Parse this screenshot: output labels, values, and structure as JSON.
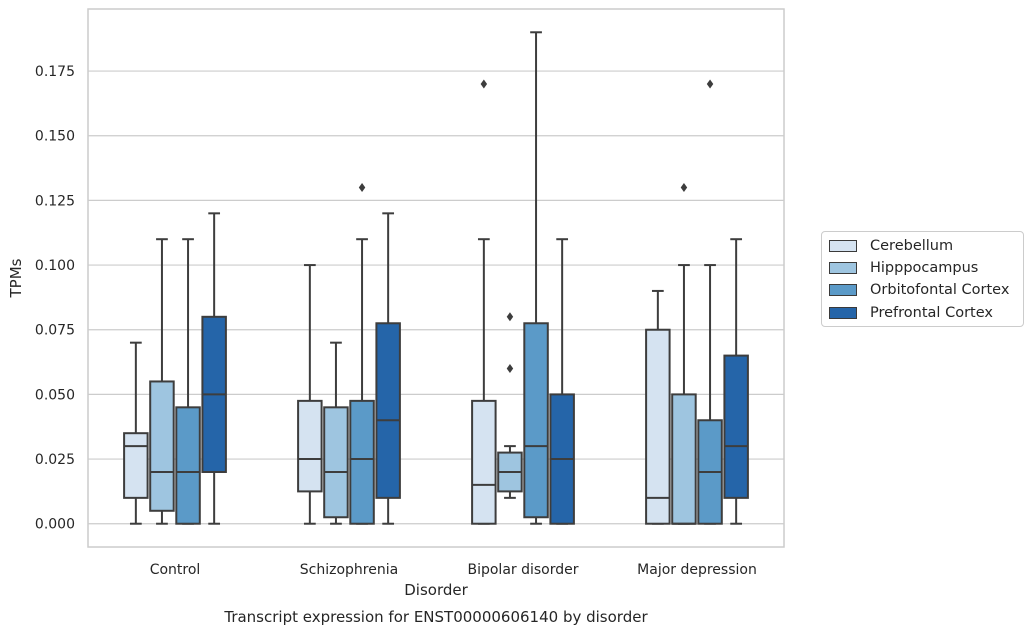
{
  "chart_data": {
    "type": "box",
    "title": "Transcript expression for ENST00000606140 by disorder",
    "xlabel": "Disorder",
    "ylabel": "TPMs",
    "ylim": [
      -0.009,
      0.199
    ],
    "yticks": [
      "0.000",
      "0.025",
      "0.050",
      "0.075",
      "0.100",
      "0.125",
      "0.150",
      "0.175"
    ],
    "ytick_values": [
      0,
      0.025,
      0.05,
      0.075,
      0.1,
      0.125,
      0.15,
      0.175
    ],
    "categories": [
      "Control",
      "Schizophrenia",
      "Bipolar disorder",
      "Major depression"
    ],
    "grid": true,
    "legend_position": "right",
    "series": [
      {
        "name": "Cerebellum",
        "color": "#d5e3f1",
        "boxes": [
          {
            "min": 0,
            "q1": 0.01,
            "median": 0.03,
            "q3": 0.035,
            "max": 0.07,
            "outliers": []
          },
          {
            "min": 0,
            "q1": 0.0125,
            "median": 0.025,
            "q3": 0.0475,
            "max": 0.1,
            "outliers": []
          },
          {
            "min": 0,
            "q1": 0,
            "median": 0.015,
            "q3": 0.0475,
            "max": 0.11,
            "outliers": [
              0.17
            ]
          },
          {
            "min": 0,
            "q1": 0,
            "median": 0.01,
            "q3": 0.075,
            "max": 0.09,
            "outliers": []
          }
        ]
      },
      {
        "name": "Hipppocampus",
        "color": "#9ec5e0",
        "boxes": [
          {
            "min": 0,
            "q1": 0.005,
            "median": 0.02,
            "q3": 0.055,
            "max": 0.11,
            "outliers": []
          },
          {
            "min": 0,
            "q1": 0.0025,
            "median": 0.02,
            "q3": 0.045,
            "max": 0.07,
            "outliers": []
          },
          {
            "min": 0.01,
            "q1": 0.0125,
            "median": 0.02,
            "q3": 0.0275,
            "max": 0.03,
            "outliers": [
              0.06,
              0.08
            ]
          },
          {
            "min": 0,
            "q1": 0,
            "median": 0,
            "q3": 0.05,
            "max": 0.1,
            "outliers": [
              0.13
            ]
          }
        ]
      },
      {
        "name": "Orbitofontal Cortex",
        "color": "#5b9ac8",
        "boxes": [
          {
            "min": 0,
            "q1": 0,
            "median": 0.02,
            "q3": 0.045,
            "max": 0.11,
            "outliers": []
          },
          {
            "min": 0,
            "q1": 0,
            "median": 0.025,
            "q3": 0.0475,
            "max": 0.11,
            "outliers": [
              0.13
            ]
          },
          {
            "min": 0,
            "q1": 0.0025,
            "median": 0.03,
            "q3": 0.0775,
            "max": 0.19,
            "outliers": []
          },
          {
            "min": 0,
            "q1": 0,
            "median": 0.02,
            "q3": 0.04,
            "max": 0.1,
            "outliers": [
              0.17
            ]
          }
        ]
      },
      {
        "name": "Prefrontal Cortex",
        "color": "#2565a9",
        "boxes": [
          {
            "min": 0,
            "q1": 0.02,
            "median": 0.05,
            "q3": 0.08,
            "max": 0.12,
            "outliers": []
          },
          {
            "min": 0,
            "q1": 0.01,
            "median": 0.04,
            "q3": 0.0775,
            "max": 0.12,
            "outliers": []
          },
          {
            "min": 0,
            "q1": 0,
            "median": 0.025,
            "q3": 0.05,
            "max": 0.11,
            "outliers": []
          },
          {
            "min": 0,
            "q1": 0.01,
            "median": 0.03,
            "q3": 0.065,
            "max": 0.11,
            "outliers": []
          }
        ]
      }
    ]
  }
}
